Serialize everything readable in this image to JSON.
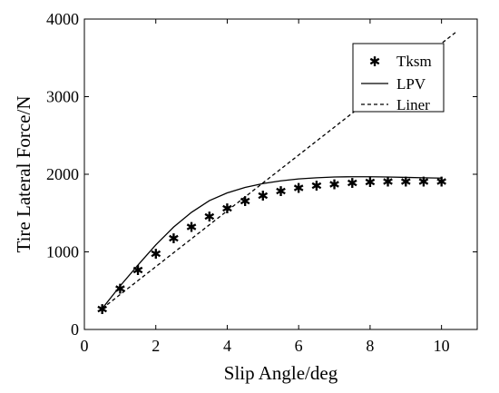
{
  "chart_data": {
    "type": "line",
    "xlabel": "Slip Angle/deg",
    "ylabel": "Tire Lateral Force/N",
    "xlim": [
      0,
      11
    ],
    "ylim": [
      0,
      4000
    ],
    "xticks": [
      0,
      2,
      4,
      6,
      8,
      10
    ],
    "yticks": [
      0,
      1000,
      2000,
      3000,
      4000
    ],
    "grid": false,
    "legend_position": "top-right",
    "series": [
      {
        "name": "Tksm",
        "style": "marker",
        "marker": "*",
        "color": "#000000",
        "x": [
          0.5,
          1,
          1.5,
          2,
          2.5,
          3,
          3.5,
          4,
          4.5,
          5,
          5.5,
          6,
          6.5,
          7,
          7.5,
          8,
          8.5,
          9,
          9.5,
          10
        ],
        "y": [
          270,
          530,
          770,
          980,
          1180,
          1330,
          1460,
          1570,
          1660,
          1730,
          1790,
          1830,
          1860,
          1880,
          1895,
          1905,
          1910,
          1915,
          1915,
          1915
        ]
      },
      {
        "name": "LPV",
        "style": "solid",
        "color": "#000000",
        "x": [
          0.5,
          1,
          1.5,
          2,
          2.5,
          3,
          3.5,
          4,
          4.5,
          5,
          5.5,
          6,
          6.5,
          7,
          7.5,
          8,
          8.5,
          9,
          9.5,
          10
        ],
        "y": [
          270,
          560,
          830,
          1090,
          1320,
          1510,
          1660,
          1760,
          1830,
          1880,
          1915,
          1940,
          1955,
          1965,
          1968,
          1968,
          1965,
          1960,
          1955,
          1950
        ]
      },
      {
        "name": "Liner",
        "style": "dashed",
        "color": "#000000",
        "x": [
          0.5,
          10.4
        ],
        "y": [
          270,
          3830
        ]
      }
    ]
  }
}
